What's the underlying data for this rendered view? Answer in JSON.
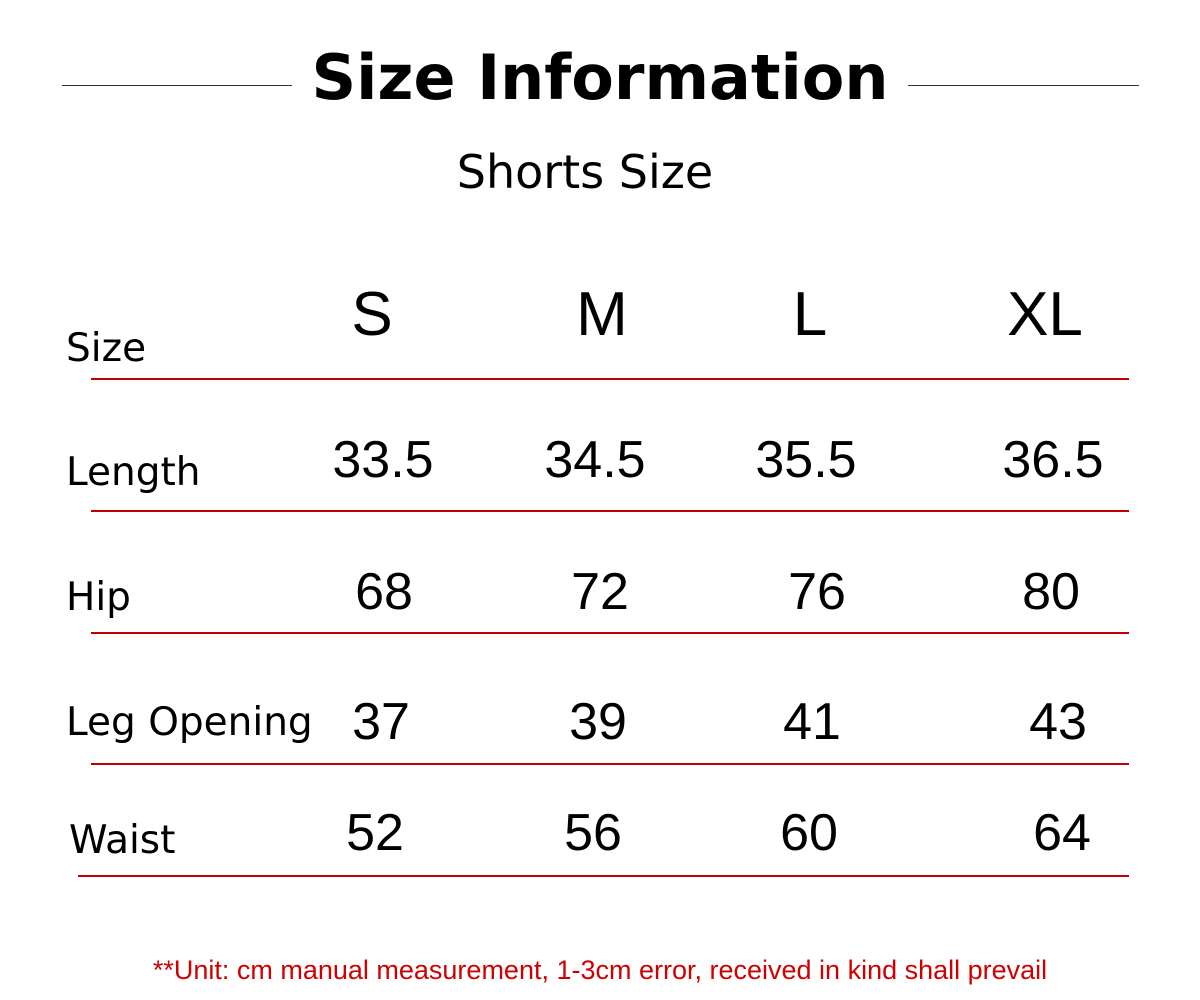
{
  "title": "Size Information",
  "subtitle": "Shorts Size",
  "table": {
    "header_label": "Size",
    "sizes": [
      "S",
      "M",
      "L",
      "XL"
    ],
    "rows": [
      {
        "label": "Length",
        "values": [
          "33.5",
          "34.5",
          "35.5",
          "36.5"
        ]
      },
      {
        "label": "Hip",
        "values": [
          "68",
          "72",
          "76",
          "80"
        ]
      },
      {
        "label": "Leg Opening",
        "values": [
          "37",
          "39",
          "41",
          "43"
        ]
      },
      {
        "label": "Waist",
        "values": [
          "52",
          "56",
          "60",
          "64"
        ]
      }
    ]
  },
  "note": "**Unit: cm manual measurement, 1-3cm error, received in kind shall prevail",
  "colors": {
    "rule": "#c00000",
    "note": "#d00000"
  }
}
